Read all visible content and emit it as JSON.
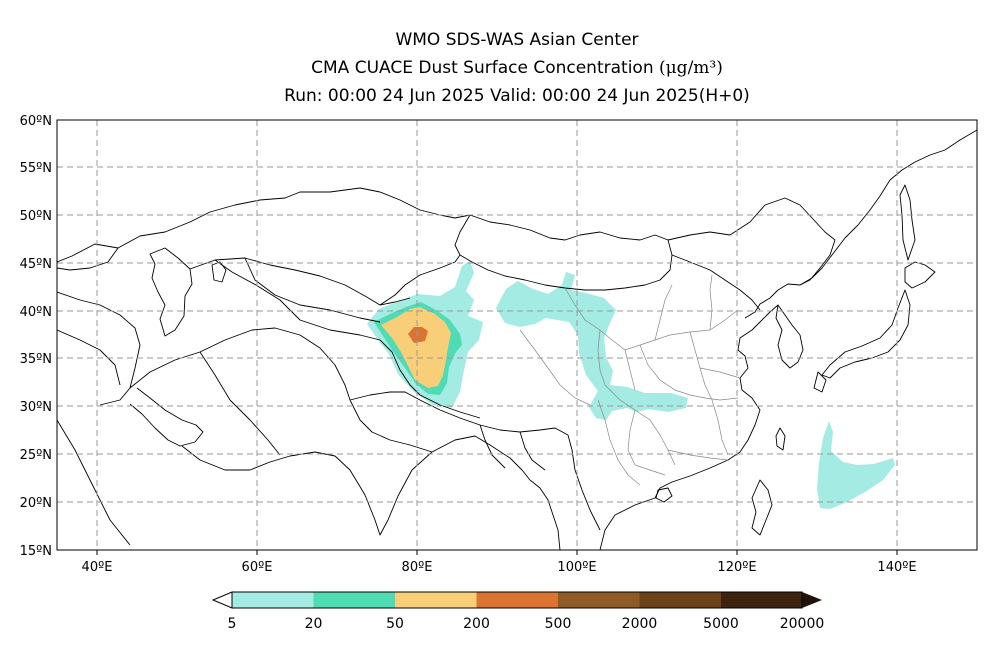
{
  "title": {
    "line1": "WMO SDS-WAS Asian Center",
    "line2": "CMA CUACE Dust Surface Concentration",
    "unit": "(μg/m³)",
    "line3": "Run: 00:00 24 Jun 2025     Valid: 00:00 24 Jun 2025(H+0)"
  },
  "map": {
    "lon_range": [
      35,
      150
    ],
    "lat_range": [
      15,
      60
    ],
    "lon_ticks": [
      {
        "value": 40,
        "label": "40ºE"
      },
      {
        "value": 60,
        "label": "60ºE"
      },
      {
        "value": 80,
        "label": "80ºE"
      },
      {
        "value": 100,
        "label": "100ºE"
      },
      {
        "value": 120,
        "label": "120ºE"
      },
      {
        "value": 140,
        "label": "140ºE"
      }
    ],
    "lat_ticks": [
      {
        "value": 15,
        "label": "15ºN"
      },
      {
        "value": 20,
        "label": "20ºN"
      },
      {
        "value": 25,
        "label": "25ºN"
      },
      {
        "value": 30,
        "label": "30ºN"
      },
      {
        "value": 35,
        "label": "35ºN"
      },
      {
        "value": 40,
        "label": "40ºN"
      },
      {
        "value": 45,
        "label": "45ºN"
      },
      {
        "value": 50,
        "label": "50ºN"
      },
      {
        "value": 55,
        "label": "55ºN"
      },
      {
        "value": 60,
        "label": "60ºN"
      }
    ],
    "grid": true
  },
  "colorbar": {
    "levels": [
      "5",
      "20",
      "50",
      "200",
      "500",
      "2000",
      "5000",
      "20000"
    ],
    "colors": [
      "#a3ebe3",
      "#4fdbb4",
      "#f8cf78",
      "#da7432",
      "#8e5a25",
      "#6c4318",
      "#3d2410",
      "#1f1209"
    ]
  }
}
